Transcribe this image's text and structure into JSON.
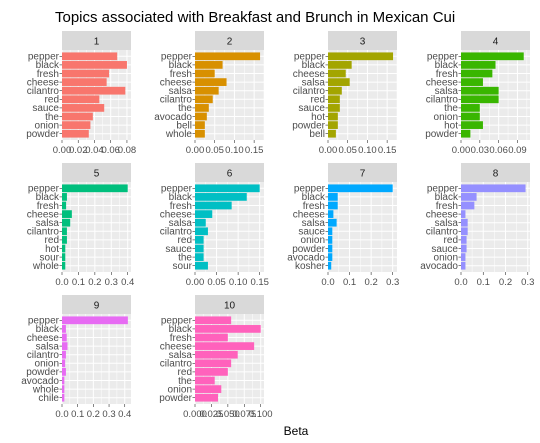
{
  "chart_data": {
    "type": "bar",
    "orientation": "horizontal",
    "title": "Topics associated with Breakfast and Brunch in Mexican Cui",
    "xlabel": "Beta",
    "ylabel": "",
    "panel_background": "#EBEBEB",
    "strip_background": "#D9D9D9",
    "grid": true,
    "facets": [
      {
        "name": "1",
        "color": "#F8766D",
        "xlim": [
          0,
          0.085
        ],
        "ticks": [
          {
            "v": 0.0,
            "t": "0.00"
          },
          {
            "v": 0.02,
            "t": "0.02"
          },
          {
            "v": 0.04,
            "t": "0.04"
          },
          {
            "v": 0.06,
            "t": "0.06"
          },
          {
            "v": 0.08,
            "t": "0.08"
          }
        ],
        "terms": [
          "pepper",
          "black",
          "fresh",
          "cheese",
          "cilantro",
          "red",
          "sauce",
          "the",
          "onion",
          "powder"
        ],
        "values": [
          0.068,
          0.08,
          0.058,
          0.055,
          0.078,
          0.046,
          0.052,
          0.038,
          0.035,
          0.033
        ]
      },
      {
        "name": "2",
        "color": "#D89000",
        "xlim": [
          0,
          0.175
        ],
        "ticks": [
          {
            "v": 0.0,
            "t": "0.00"
          },
          {
            "v": 0.05,
            "t": "0.05"
          },
          {
            "v": 0.1,
            "t": "0.10"
          },
          {
            "v": 0.15,
            "t": "0.15"
          }
        ],
        "terms": [
          "pepper",
          "black",
          "fresh",
          "cheese",
          "salsa",
          "cilantro",
          "the",
          "avocado",
          "bell",
          "whole"
        ],
        "values": [
          0.165,
          0.07,
          0.05,
          0.08,
          0.06,
          0.045,
          0.035,
          0.03,
          0.025,
          0.025
        ]
      },
      {
        "name": "3",
        "color": "#A3A500",
        "xlim": [
          0,
          0.175
        ],
        "ticks": [
          {
            "v": 0.0,
            "t": "0.00"
          },
          {
            "v": 0.05,
            "t": "0.05"
          },
          {
            "v": 0.1,
            "t": "0.10"
          },
          {
            "v": 0.15,
            "t": "0.15"
          }
        ],
        "terms": [
          "pepper",
          "black",
          "cheese",
          "salsa",
          "cilantro",
          "red",
          "sauce",
          "hot",
          "powder",
          "bell"
        ],
        "values": [
          0.165,
          0.06,
          0.045,
          0.055,
          0.035,
          0.03,
          0.03,
          0.025,
          0.025,
          0.02
        ]
      },
      {
        "name": "4",
        "color": "#39B600",
        "xlim": [
          0,
          0.11
        ],
        "ticks": [
          {
            "v": 0.0,
            "t": "0.00"
          },
          {
            "v": 0.03,
            "t": "0.03"
          },
          {
            "v": 0.06,
            "t": "0.06"
          },
          {
            "v": 0.09,
            "t": "0.09"
          }
        ],
        "terms": [
          "pepper",
          "black",
          "fresh",
          "cheese",
          "salsa",
          "cilantro",
          "the",
          "onion",
          "hot",
          "powder"
        ],
        "values": [
          0.1,
          0.055,
          0.05,
          0.035,
          0.06,
          0.06,
          0.03,
          0.03,
          0.035,
          0.015
        ]
      },
      {
        "name": "5",
        "color": "#00BF7D",
        "xlim": [
          0,
          0.42
        ],
        "ticks": [
          {
            "v": 0.0,
            "t": "0.0"
          },
          {
            "v": 0.1,
            "t": "0.1"
          },
          {
            "v": 0.2,
            "t": "0.2"
          },
          {
            "v": 0.3,
            "t": "0.3"
          },
          {
            "v": 0.4,
            "t": "0.4"
          }
        ],
        "terms": [
          "pepper",
          "black",
          "fresh",
          "cheese",
          "salsa",
          "cilantro",
          "red",
          "hot",
          "sour",
          "whole"
        ],
        "values": [
          0.4,
          0.03,
          0.025,
          0.06,
          0.05,
          0.03,
          0.03,
          0.02,
          0.02,
          0.02
        ]
      },
      {
        "name": "6",
        "color": "#00BFC4",
        "xlim": [
          0,
          0.16
        ],
        "ticks": [
          {
            "v": 0.0,
            "t": "0.00"
          },
          {
            "v": 0.05,
            "t": "0.05"
          },
          {
            "v": 0.1,
            "t": "0.10"
          },
          {
            "v": 0.15,
            "t": "0.15"
          }
        ],
        "terms": [
          "pepper",
          "black",
          "fresh",
          "cheese",
          "salsa",
          "cilantro",
          "red",
          "sauce",
          "the",
          "sour"
        ],
        "values": [
          0.15,
          0.12,
          0.085,
          0.04,
          0.025,
          0.03,
          0.02,
          0.02,
          0.02,
          0.03
        ]
      },
      {
        "name": "7",
        "color": "#00A9FF",
        "xlim": [
          0,
          0.32
        ],
        "ticks": [
          {
            "v": 0.0,
            "t": "0.0"
          },
          {
            "v": 0.1,
            "t": "0.1"
          },
          {
            "v": 0.2,
            "t": "0.2"
          },
          {
            "v": 0.3,
            "t": "0.3"
          }
        ],
        "terms": [
          "pepper",
          "black",
          "fresh",
          "cheese",
          "salsa",
          "sauce",
          "onion",
          "powder",
          "avocado",
          "kosher"
        ],
        "values": [
          0.3,
          0.045,
          0.045,
          0.025,
          0.04,
          0.02,
          0.02,
          0.02,
          0.02,
          0.015
        ]
      },
      {
        "name": "8",
        "color": "#9590FF",
        "xlim": [
          0,
          0.31
        ],
        "ticks": [
          {
            "v": 0.0,
            "t": "0.0"
          },
          {
            "v": 0.1,
            "t": "0.1"
          },
          {
            "v": 0.2,
            "t": "0.2"
          },
          {
            "v": 0.3,
            "t": "0.3"
          }
        ],
        "terms": [
          "pepper",
          "black",
          "fresh",
          "cheese",
          "salsa",
          "cilantro",
          "red",
          "sauce",
          "onion",
          "avocado"
        ],
        "values": [
          0.29,
          0.07,
          0.06,
          0.02,
          0.03,
          0.03,
          0.025,
          0.025,
          0.02,
          0.02
        ]
      },
      {
        "name": "9",
        "color": "#E76BF3",
        "xlim": [
          0,
          0.44
        ],
        "ticks": [
          {
            "v": 0.0,
            "t": "0.0"
          },
          {
            "v": 0.1,
            "t": "0.1"
          },
          {
            "v": 0.2,
            "t": "0.2"
          },
          {
            "v": 0.3,
            "t": "0.3"
          },
          {
            "v": 0.4,
            "t": "0.4"
          }
        ],
        "terms": [
          "pepper",
          "black",
          "cheese",
          "salsa",
          "cilantro",
          "onion",
          "powder",
          "avocado",
          "whole",
          "chile"
        ],
        "values": [
          0.42,
          0.025,
          0.03,
          0.035,
          0.025,
          0.02,
          0.025,
          0.015,
          0.015,
          0.015
        ]
      },
      {
        "name": "10",
        "color": "#FF62BC",
        "xlim": [
          0,
          0.105
        ],
        "ticks": [
          {
            "v": 0.0,
            "t": "0.000"
          },
          {
            "v": 0.025,
            "t": "0.025"
          },
          {
            "v": 0.05,
            "t": "0.050"
          },
          {
            "v": 0.075,
            "t": "0.075"
          },
          {
            "v": 0.1,
            "t": "0.100"
          }
        ],
        "terms": [
          "pepper",
          "black",
          "fresh",
          "cheese",
          "salsa",
          "cilantro",
          "red",
          "the",
          "onion",
          "powder"
        ],
        "values": [
          0.055,
          0.1,
          0.05,
          0.09,
          0.065,
          0.055,
          0.05,
          0.03,
          0.04,
          0.035
        ]
      }
    ]
  }
}
